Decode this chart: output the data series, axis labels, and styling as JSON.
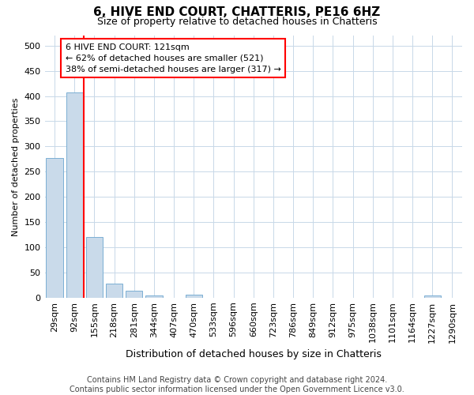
{
  "title": "6, HIVE END COURT, CHATTERIS, PE16 6HZ",
  "subtitle": "Size of property relative to detached houses in Chatteris",
  "xlabel": "Distribution of detached houses by size in Chatteris",
  "ylabel": "Number of detached properties",
  "bin_labels": [
    "29sqm",
    "92sqm",
    "155sqm",
    "218sqm",
    "281sqm",
    "344sqm",
    "407sqm",
    "470sqm",
    "533sqm",
    "596sqm",
    "660sqm",
    "723sqm",
    "786sqm",
    "849sqm",
    "912sqm",
    "975sqm",
    "1038sqm",
    "1101sqm",
    "1164sqm",
    "1227sqm",
    "1290sqm"
  ],
  "bar_values": [
    277,
    407,
    121,
    28,
    14,
    4,
    0,
    5,
    0,
    0,
    0,
    0,
    0,
    0,
    0,
    0,
    0,
    0,
    0,
    4,
    0
  ],
  "bar_color": "#c9daea",
  "bar_edge_color": "#7bafd4",
  "annotation_line_color": "red",
  "annotation_box_text_line1": "6 HIVE END COURT: 121sqm",
  "annotation_box_text_line2": "← 62% of detached houses are smaller (521)",
  "annotation_box_text_line3": "38% of semi-detached houses are larger (317) →",
  "annotation_box_color": "white",
  "annotation_box_edge_color": "red",
  "ylim": [
    0,
    520
  ],
  "yticks": [
    0,
    50,
    100,
    150,
    200,
    250,
    300,
    350,
    400,
    450,
    500
  ],
  "footer_line1": "Contains HM Land Registry data © Crown copyright and database right 2024.",
  "footer_line2": "Contains public sector information licensed under the Open Government Licence v3.0.",
  "background_color": "#ffffff",
  "plot_background": "#ffffff",
  "grid_color": "#c8d8e8",
  "title_fontsize": 11,
  "subtitle_fontsize": 9,
  "ylabel_fontsize": 8,
  "xlabel_fontsize": 9,
  "tick_fontsize": 8,
  "footer_fontsize": 7
}
